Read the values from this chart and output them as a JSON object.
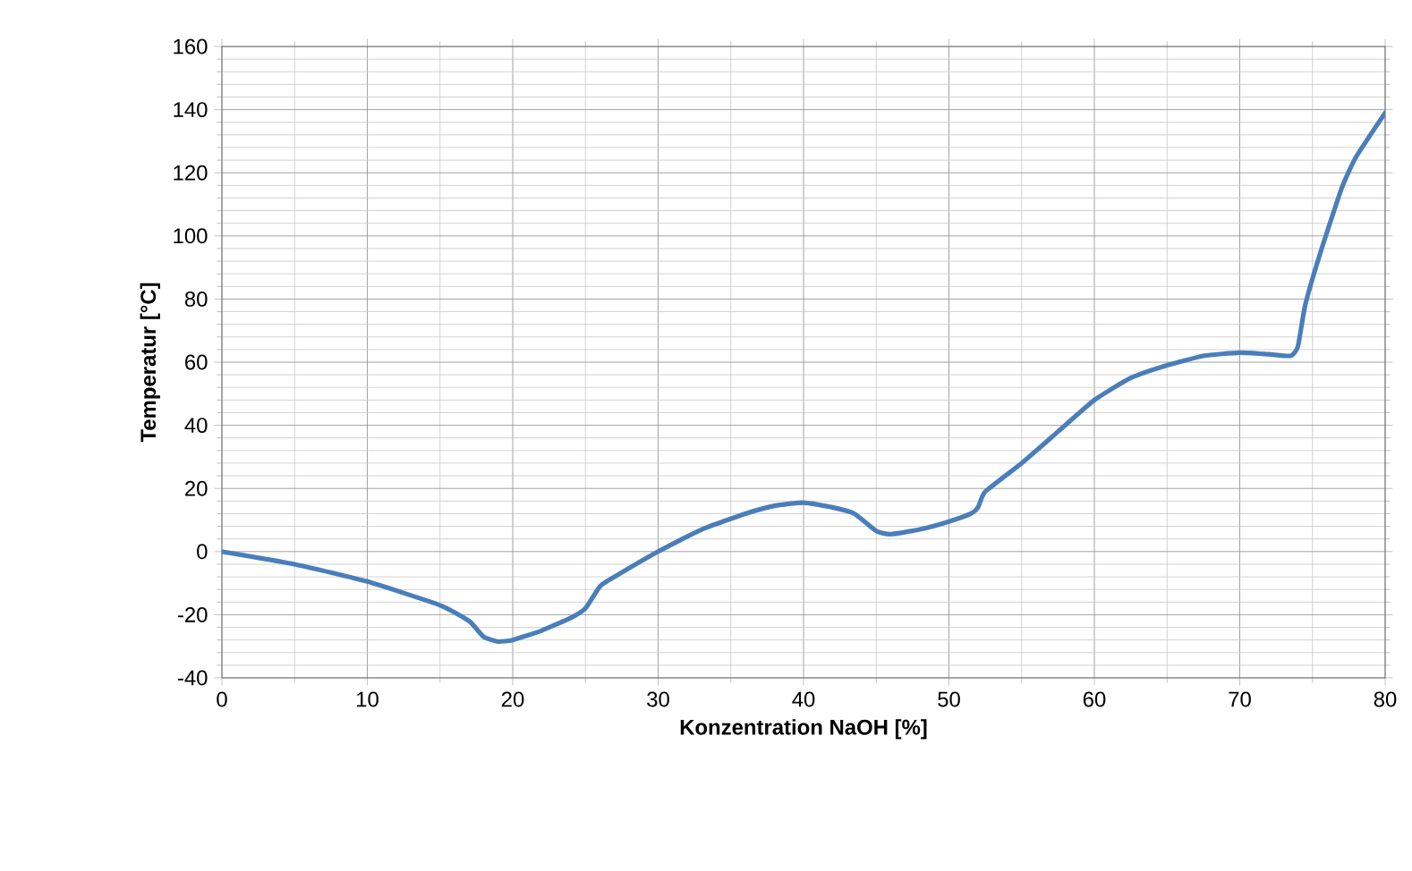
{
  "chart_data": {
    "type": "line",
    "xlabel": "Konzentration NaOH [%]",
    "ylabel": "Temperatur [°C]",
    "xlim": [
      0,
      80
    ],
    "xticks": [
      0,
      10,
      20,
      30,
      40,
      50,
      60,
      70,
      80
    ],
    "ylim": [
      -40,
      160
    ],
    "yticks": [
      -40,
      -20,
      0,
      20,
      40,
      60,
      80,
      100,
      120,
      140,
      160
    ],
    "grid": true,
    "marker": "none",
    "line_style": "solid",
    "x": [
      0,
      5,
      10,
      15,
      17,
      18,
      19,
      20,
      22,
      24,
      25,
      26,
      27,
      30,
      33,
      36,
      38,
      40,
      42,
      43.5,
      45,
      46,
      48,
      50,
      51.5,
      52,
      52.5,
      55,
      57.5,
      60,
      62.5,
      65,
      67.5,
      70,
      72,
      73.5,
      74,
      74.5,
      75.5,
      77,
      78,
      80
    ],
    "series": [
      {
        "color": "#4a7ebb",
        "values": [
          0,
          -4,
          -9.5,
          -17,
          -22,
          -27,
          -28.5,
          -28,
          -25,
          -21,
          -18,
          -11,
          -8,
          0,
          7,
          12,
          14.5,
          15.5,
          14,
          12,
          6.5,
          5.5,
          7,
          9.5,
          12,
          14,
          19,
          28,
          38,
          48,
          55,
          59,
          62,
          63,
          62.5,
          62,
          65,
          78,
          94,
          115,
          125,
          139
        ]
      }
    ]
  }
}
